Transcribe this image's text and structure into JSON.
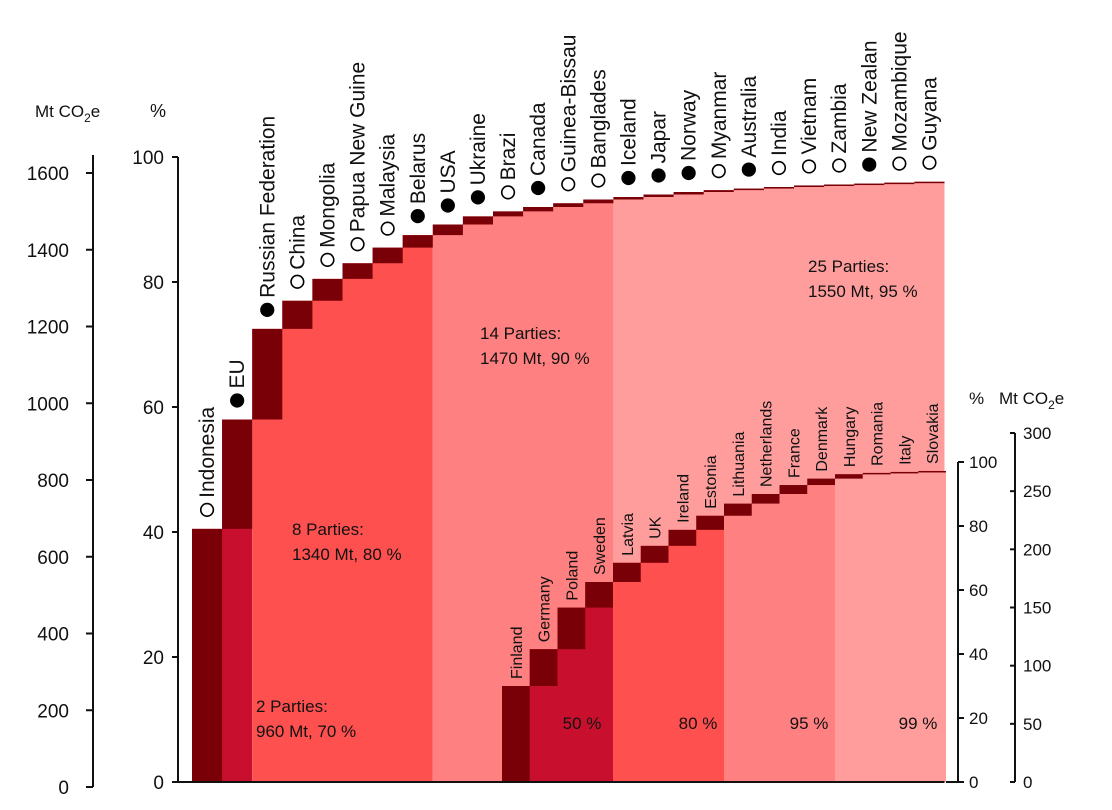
{
  "chart_data": {
    "type": "bar",
    "subtype": "cumulative waterfall (share of total LULUCF removals by Party)",
    "colors": {
      "step": "#7a0008",
      "zone_1": "#c8102e",
      "zone_2": "#ff5050",
      "zone_3": "#ff8080",
      "zone_4": "#ff9d9d",
      "open_marker": "#ffffff",
      "filled_marker": "#000000",
      "axis": "#111111"
    },
    "left_axes": {
      "mt_label": "Mt CO2e",
      "pct_label": "%",
      "mt_ticks": [
        "0",
        "200",
        "400",
        "600",
        "800",
        "1000",
        "1200",
        "1400",
        "1600"
      ],
      "pct_ticks": [
        "0",
        "20",
        "40",
        "60",
        "80",
        "100"
      ],
      "mt_range": [
        0,
        1600
      ],
      "pct_range": [
        0,
        100
      ]
    },
    "main_series": {
      "parties": [
        "Indonesia",
        "EU",
        "Russian Federation",
        "China",
        "Mongolia",
        "Papua New Guine",
        "Malaysia",
        "Belarus",
        "USA",
        "Ukraine",
        "Brazi",
        "Canada",
        "Guinea-Bissau",
        "Banglades",
        "Iceland",
        "Japar",
        "Norway",
        "Myanmar",
        "Australia",
        "India",
        "Vietnam",
        "Zambia",
        "New Zealan",
        "Mozambique",
        "Guyana"
      ],
      "markers": [
        "open",
        "filled",
        "filled",
        "open",
        "open",
        "open",
        "open",
        "filled",
        "filled",
        "filled",
        "open",
        "filled",
        "open",
        "open",
        "filled",
        "filled",
        "filled",
        "open",
        "filled",
        "open",
        "open",
        "open",
        "filled",
        "open",
        "open"
      ],
      "cumulative_pct": [
        40.5,
        58.0,
        72.5,
        77.0,
        80.5,
        83.0,
        85.5,
        87.5,
        89.2,
        90.5,
        91.3,
        92.0,
        92.6,
        93.2,
        93.6,
        94.0,
        94.4,
        94.7,
        94.95,
        95.2,
        95.45,
        95.6,
        95.75,
        95.9,
        96.05
      ],
      "zone_ends": [
        2,
        8,
        14,
        20,
        25
      ],
      "annotations": [
        {
          "label": "2 Parties:",
          "value": "960 Mt, 70 %"
        },
        {
          "label": "8 Parties:",
          "value": "1340 Mt, 80 %"
        },
        {
          "label": "14 Parties:",
          "value": "1470 Mt, 90 %"
        },
        {
          "label": "25 Parties:",
          "value": "1550 Mt, 95 %"
        }
      ]
    },
    "inset": {
      "pct_label": "%",
      "mt_label": "Mt CO2e",
      "pct_ticks": [
        "0",
        "20",
        "40",
        "60",
        "80",
        "100"
      ],
      "mt_ticks": [
        "0",
        "50",
        "100",
        "150",
        "200",
        "250",
        "300"
      ],
      "pct_range": [
        0,
        100
      ],
      "mt_range": [
        0,
        300
      ],
      "parties": [
        "Finland",
        "Germany",
        "Poland",
        "Sweden",
        "Latvia",
        "UK",
        "Ireland",
        "Estonia",
        "Lithuania",
        "Netherlands",
        "France",
        "Denmark",
        "Hungary",
        "Romania",
        "Italy",
        "Slovakia"
      ],
      "cumulative_pct": [
        30.0,
        41.5,
        54.5,
        62.5,
        68.5,
        73.8,
        78.8,
        83.2,
        87.0,
        90.0,
        92.8,
        94.8,
        96.2,
        96.6,
        96.9,
        97.2
      ],
      "zone_ends": [
        4,
        8,
        12,
        16
      ],
      "zone_labels": [
        "50 %",
        "80 %",
        "95 %",
        "99 %"
      ]
    }
  }
}
